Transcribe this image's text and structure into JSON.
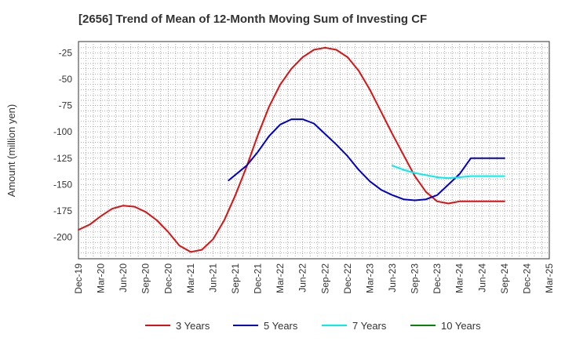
{
  "chart_data": {
    "type": "line",
    "title": "[2656]  Trend of Mean of 12-Month Moving Sum of Investing CF",
    "xlabel": "",
    "ylabel": "Amount (million yen)",
    "ylim": [
      -220,
      -15
    ],
    "yticks": [
      -25,
      -50,
      -75,
      -100,
      -125,
      -150,
      -175,
      -200
    ],
    "x_tick_labels": [
      "Dec-19",
      "Mar-20",
      "Jun-20",
      "Sep-20",
      "Dec-20",
      "Mar-21",
      "Jun-21",
      "Sep-21",
      "Dec-21",
      "Mar-22",
      "Jun-22",
      "Sep-22",
      "Dec-22",
      "Mar-23",
      "Jun-23",
      "Sep-23",
      "Dec-23",
      "Mar-24",
      "Jun-24",
      "Sep-24",
      "Dec-24",
      "Mar-25"
    ],
    "grid": true,
    "legend_position": "bottom",
    "series": [
      {
        "name": "3 Years",
        "color": "#dd1111",
        "x": [
          0,
          0.5,
          1,
          1.5,
          2,
          2.5,
          3,
          3.5,
          4,
          4.5,
          5,
          5.5,
          6,
          6.5,
          7,
          7.5,
          8,
          8.5,
          9,
          9.5,
          10,
          10.5,
          11,
          11.5,
          12,
          12.5,
          13,
          13.5,
          14,
          14.5,
          15,
          15.5,
          16,
          16.5,
          17,
          17.5,
          18,
          18.5,
          19
        ],
        "values": [
          -193,
          -188,
          -180,
          -173,
          -170,
          -171,
          -176,
          -184,
          -195,
          -208,
          -214,
          -212,
          -202,
          -184,
          -160,
          -133,
          -103,
          -76,
          -55,
          -40,
          -29,
          -22,
          -20,
          -22,
          -29,
          -42,
          -60,
          -81,
          -102,
          -122,
          -142,
          -157,
          -166,
          -168,
          -166,
          -166,
          -166,
          -166,
          -166
        ]
      },
      {
        "name": "5 Years",
        "color": "#0000cc",
        "x": [
          6.7,
          7.5,
          8,
          8.5,
          9,
          9.5,
          10,
          10.5,
          11,
          11.5,
          12,
          12.5,
          13,
          13.5,
          14,
          14.5,
          15,
          15.5,
          16,
          16.5,
          17,
          17.5,
          18,
          18.5,
          19
        ],
        "values": [
          -146,
          -132,
          -119,
          -104,
          -93,
          -88,
          -88,
          -92,
          -102,
          -112,
          -123,
          -136,
          -147,
          -155,
          -160,
          -164,
          -165,
          -164,
          -160,
          -150,
          -140,
          -125,
          -125,
          -125,
          -125
        ]
      },
      {
        "name": "7 Years",
        "color": "#00eeee",
        "x": [
          14,
          14.5,
          15,
          15.5,
          16,
          16.5,
          17,
          17.5,
          18,
          18.5,
          19
        ],
        "values": [
          -132,
          -136,
          -139,
          -141,
          -143,
          -144,
          -143,
          -142,
          -142,
          -142,
          -142
        ]
      },
      {
        "name": "10 Years",
        "color": "#008800",
        "x": [],
        "values": []
      }
    ]
  }
}
